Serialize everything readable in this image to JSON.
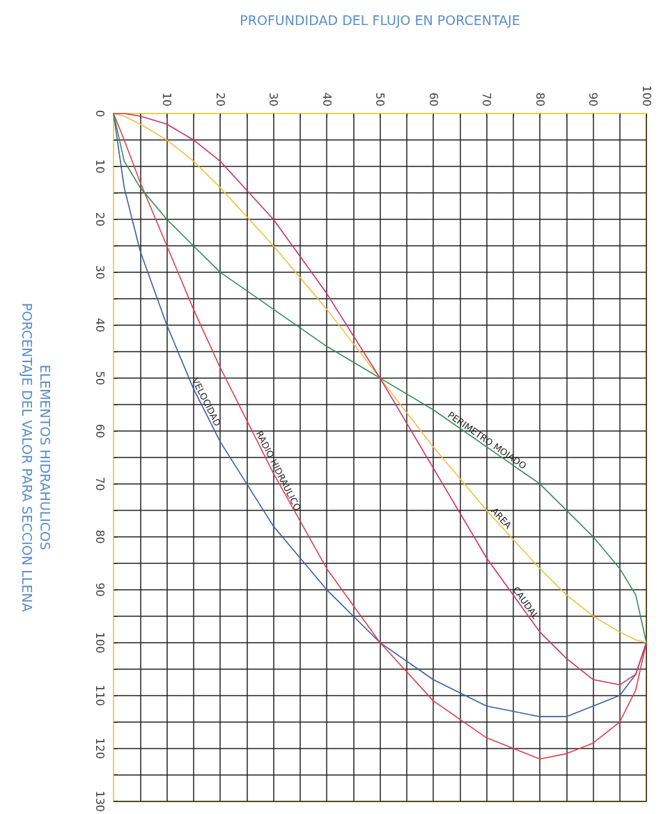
{
  "chart_data": {
    "type": "line",
    "xlabel": "PROFUNDIDAD DEL FLUJO EN PORCENTAJE",
    "ylabel": "ELEMENTOS HIDRAHULICOS\nPORCENTAJE DEL VALOR PARA SECCION LLENA",
    "x": [
      0,
      2,
      5,
      10,
      15,
      20,
      30,
      40,
      50,
      60,
      70,
      80,
      85,
      90,
      95,
      98,
      100
    ],
    "series": [
      {
        "name": "VELOCIDAD",
        "color": "#3a5fa8",
        "values": [
          0,
          14,
          26,
          40,
          52,
          62,
          78,
          90,
          100,
          107,
          112,
          114,
          114,
          112,
          110,
          106,
          100
        ]
      },
      {
        "name": "RADIO HIDRAULICO",
        "color": "#e0404a",
        "values": [
          0,
          5,
          13,
          25,
          37,
          48,
          68,
          86,
          100,
          111,
          118,
          122,
          121,
          119,
          115,
          109,
          100
        ]
      },
      {
        "name": "PERIMETRO MOJADO",
        "color": "#3a8a5a",
        "values": [
          0,
          9,
          14,
          20,
          25,
          30,
          37,
          44,
          50,
          56,
          63,
          70,
          75,
          80,
          86,
          91,
          100
        ]
      },
      {
        "name": "AREA",
        "color": "#f0c040",
        "values": [
          0,
          0.5,
          2,
          5,
          9,
          14,
          25,
          37,
          50,
          63,
          75,
          86,
          91,
          95,
          98,
          99.5,
          100
        ]
      },
      {
        "name": "CAUDAL",
        "color": "#d0306a",
        "values": [
          0,
          0,
          0.5,
          2,
          5,
          9,
          20,
          34,
          50,
          67,
          84,
          98,
          103,
          107,
          108,
          106,
          100
        ]
      }
    ],
    "xlim": [
      0,
      100
    ],
    "xticks": [
      {
        "value": 0,
        "label": null
      },
      {
        "value": 5,
        "label": null
      },
      10,
      {
        "value": 15,
        "label": null
      },
      20,
      {
        "value": 25,
        "label": null
      },
      30,
      {
        "value": 35,
        "label": null
      },
      40,
      {
        "value": 45,
        "label": null
      },
      50,
      {
        "value": 55,
        "label": null
      },
      60,
      {
        "value": 65,
        "label": null
      },
      70,
      {
        "value": 75,
        "label": null
      },
      80,
      {
        "value": 85,
        "label": null
      },
      90,
      {
        "value": 95,
        "label": null
      },
      100
    ],
    "ylim": [
      130,
      0
    ],
    "yticks": [
      0,
      {
        "value": 5,
        "label": null
      },
      10,
      {
        "value": 15,
        "label": null
      },
      20,
      {
        "value": 25,
        "label": null
      },
      30,
      {
        "value": 35,
        "label": null
      },
      40,
      {
        "value": 45,
        "label": null
      },
      50,
      {
        "value": 55,
        "label": null
      },
      60,
      {
        "value": 65,
        "label": null
      },
      70,
      {
        "value": 75,
        "label": null
      },
      80,
      {
        "value": 85,
        "label": null
      },
      90,
      {
        "value": 95,
        "label": null
      },
      100,
      {
        "value": 105,
        "label": null
      },
      110,
      {
        "value": 115,
        "label": null
      },
      120,
      {
        "value": 125,
        "label": null
      },
      130
    ],
    "grid": true,
    "marker": "none",
    "line_style": "solid"
  }
}
